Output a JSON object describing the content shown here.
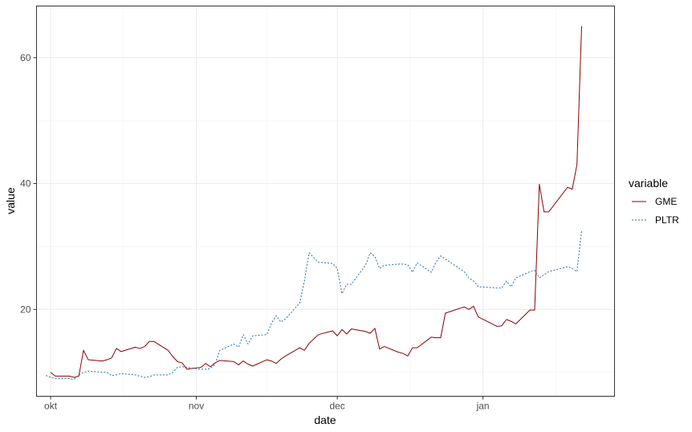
{
  "chart_data": {
    "type": "line",
    "xlabel": "date",
    "ylabel": "value",
    "x_ticks": [
      "okt",
      "nov",
      "dec",
      "jan"
    ],
    "x_tick_dates": [
      "2020-10-01",
      "2020-11-01",
      "2020-12-01",
      "2021-01-01"
    ],
    "xlim": [
      "2020-09-28",
      "2021-01-29"
    ],
    "y_ticks": [
      20,
      40,
      60
    ],
    "ylim": [
      6.2,
      68.2
    ],
    "grid": true,
    "legend": {
      "title": "variable",
      "position": "right",
      "entries": [
        "GME",
        "PLTR"
      ]
    },
    "series": [
      {
        "name": "GME",
        "color": "#8b0000",
        "line_style": "solid",
        "points": [
          [
            "2020-10-01",
            10.0
          ],
          [
            "2020-10-02",
            9.4
          ],
          [
            "2020-10-05",
            9.4
          ],
          [
            "2020-10-06",
            9.2
          ],
          [
            "2020-10-07",
            9.4
          ],
          [
            "2020-10-08",
            13.5
          ],
          [
            "2020-10-09",
            12.0
          ],
          [
            "2020-10-12",
            11.8
          ],
          [
            "2020-10-13",
            12.0
          ],
          [
            "2020-10-14",
            12.3
          ],
          [
            "2020-10-15",
            13.8
          ],
          [
            "2020-10-16",
            13.3
          ],
          [
            "2020-10-19",
            14.0
          ],
          [
            "2020-10-20",
            13.8
          ],
          [
            "2020-10-21",
            14.1
          ],
          [
            "2020-10-22",
            14.9
          ],
          [
            "2020-10-23",
            14.9
          ],
          [
            "2020-10-26",
            13.5
          ],
          [
            "2020-10-27",
            12.5
          ],
          [
            "2020-10-28",
            11.7
          ],
          [
            "2020-10-29",
            11.5
          ],
          [
            "2020-10-30",
            10.5
          ],
          [
            "2020-11-02",
            10.8
          ],
          [
            "2020-11-03",
            11.4
          ],
          [
            "2020-11-04",
            10.9
          ],
          [
            "2020-11-05",
            11.5
          ],
          [
            "2020-11-06",
            11.9
          ],
          [
            "2020-11-09",
            11.7
          ],
          [
            "2020-11-10",
            11.2
          ],
          [
            "2020-11-11",
            11.8
          ],
          [
            "2020-11-12",
            11.3
          ],
          [
            "2020-11-13",
            11.0
          ],
          [
            "2020-11-16",
            12.0
          ],
          [
            "2020-11-17",
            11.8
          ],
          [
            "2020-11-18",
            11.4
          ],
          [
            "2020-11-19",
            12.1
          ],
          [
            "2020-11-20",
            12.6
          ],
          [
            "2020-11-23",
            13.9
          ],
          [
            "2020-11-24",
            13.5
          ],
          [
            "2020-11-25",
            14.6
          ],
          [
            "2020-11-27",
            16.0
          ],
          [
            "2020-11-30",
            16.6
          ],
          [
            "2020-12-01",
            15.8
          ],
          [
            "2020-12-02",
            16.8
          ],
          [
            "2020-12-03",
            16.1
          ],
          [
            "2020-12-04",
            16.9
          ],
          [
            "2020-12-07",
            16.5
          ],
          [
            "2020-12-08",
            16.2
          ],
          [
            "2020-12-09",
            17.0
          ],
          [
            "2020-12-10",
            13.7
          ],
          [
            "2020-12-11",
            14.1
          ],
          [
            "2020-12-14",
            13.2
          ],
          [
            "2020-12-15",
            13.0
          ],
          [
            "2020-12-16",
            12.6
          ],
          [
            "2020-12-17",
            13.9
          ],
          [
            "2020-12-18",
            13.9
          ],
          [
            "2020-12-21",
            15.6
          ],
          [
            "2020-12-22",
            15.5
          ],
          [
            "2020-12-23",
            15.5
          ],
          [
            "2020-12-24",
            19.4
          ],
          [
            "2020-12-28",
            20.4
          ],
          [
            "2020-12-29",
            20.0
          ],
          [
            "2020-12-30",
            20.5
          ],
          [
            "2020-12-31",
            18.8
          ],
          [
            "2021-01-04",
            17.3
          ],
          [
            "2021-01-05",
            17.4
          ],
          [
            "2021-01-06",
            18.4
          ],
          [
            "2021-01-07",
            18.1
          ],
          [
            "2021-01-08",
            17.7
          ],
          [
            "2021-01-11",
            19.9
          ],
          [
            "2021-01-12",
            19.9
          ],
          [
            "2021-01-13",
            39.9
          ],
          [
            "2021-01-14",
            35.5
          ],
          [
            "2021-01-15",
            35.5
          ],
          [
            "2021-01-19",
            39.4
          ],
          [
            "2021-01-20",
            39.1
          ],
          [
            "2021-01-21",
            43.0
          ],
          [
            "2021-01-22",
            65.0
          ]
        ]
      },
      {
        "name": "PLTR",
        "color": "#1f6fb4",
        "line_style": "dotted",
        "points": [
          [
            "2020-09-30",
            9.5
          ],
          [
            "2020-10-01",
            9.2
          ],
          [
            "2020-10-02",
            9.0
          ],
          [
            "2020-10-05",
            9.0
          ],
          [
            "2020-10-06",
            8.9
          ],
          [
            "2020-10-07",
            9.6
          ],
          [
            "2020-10-08",
            10.0
          ],
          [
            "2020-10-09",
            10.2
          ],
          [
            "2020-10-12",
            10.0
          ],
          [
            "2020-10-13",
            10.0
          ],
          [
            "2020-10-14",
            9.5
          ],
          [
            "2020-10-15",
            9.6
          ],
          [
            "2020-10-16",
            9.8
          ],
          [
            "2020-10-19",
            9.6
          ],
          [
            "2020-10-20",
            9.4
          ],
          [
            "2020-10-21",
            9.2
          ],
          [
            "2020-10-22",
            9.3
          ],
          [
            "2020-10-23",
            9.6
          ],
          [
            "2020-10-26",
            9.6
          ],
          [
            "2020-10-27",
            10.0
          ],
          [
            "2020-10-28",
            10.8
          ],
          [
            "2020-10-29",
            10.9
          ],
          [
            "2020-10-30",
            10.8
          ],
          [
            "2020-11-02",
            10.5
          ],
          [
            "2020-11-03",
            10.5
          ],
          [
            "2020-11-04",
            10.6
          ],
          [
            "2020-11-05",
            11.3
          ],
          [
            "2020-11-06",
            13.5
          ],
          [
            "2020-11-09",
            14.5
          ],
          [
            "2020-11-10",
            14.0
          ],
          [
            "2020-11-11",
            16.0
          ],
          [
            "2020-11-12",
            14.5
          ],
          [
            "2020-11-13",
            15.8
          ],
          [
            "2020-11-16",
            16.0
          ],
          [
            "2020-11-17",
            17.8
          ],
          [
            "2020-11-18",
            19.0
          ],
          [
            "2020-11-19",
            18.0
          ],
          [
            "2020-11-20",
            18.5
          ],
          [
            "2020-11-23",
            21.0
          ],
          [
            "2020-11-24",
            24.5
          ],
          [
            "2020-11-25",
            29.0
          ],
          [
            "2020-11-27",
            27.5
          ],
          [
            "2020-11-30",
            27.3
          ],
          [
            "2020-12-01",
            26.5
          ],
          [
            "2020-12-02",
            22.5
          ],
          [
            "2020-12-03",
            24.0
          ],
          [
            "2020-12-04",
            24.0
          ],
          [
            "2020-12-07",
            27.0
          ],
          [
            "2020-12-08",
            29.0
          ],
          [
            "2020-12-09",
            28.4
          ],
          [
            "2020-12-10",
            26.5
          ],
          [
            "2020-12-11",
            27.0
          ],
          [
            "2020-12-14",
            27.2
          ],
          [
            "2020-12-15",
            27.2
          ],
          [
            "2020-12-16",
            27.1
          ],
          [
            "2020-12-17",
            25.9
          ],
          [
            "2020-12-18",
            27.4
          ],
          [
            "2020-12-21",
            25.9
          ],
          [
            "2020-12-22",
            27.5
          ],
          [
            "2020-12-23",
            28.5
          ],
          [
            "2020-12-24",
            28.0
          ],
          [
            "2020-12-28",
            26.0
          ],
          [
            "2020-12-29",
            25.0
          ],
          [
            "2020-12-30",
            24.5
          ],
          [
            "2020-12-31",
            23.6
          ],
          [
            "2021-01-04",
            23.4
          ],
          [
            "2021-01-05",
            23.4
          ],
          [
            "2021-01-06",
            24.5
          ],
          [
            "2021-01-07",
            23.6
          ],
          [
            "2021-01-08",
            25.0
          ],
          [
            "2021-01-11",
            26.0
          ],
          [
            "2021-01-12",
            26.2
          ],
          [
            "2021-01-13",
            25.0
          ],
          [
            "2021-01-14",
            25.5
          ],
          [
            "2021-01-15",
            26.0
          ],
          [
            "2021-01-19",
            26.8
          ],
          [
            "2021-01-20",
            26.5
          ],
          [
            "2021-01-21",
            26.0
          ],
          [
            "2021-01-22",
            32.5
          ]
        ]
      }
    ]
  }
}
